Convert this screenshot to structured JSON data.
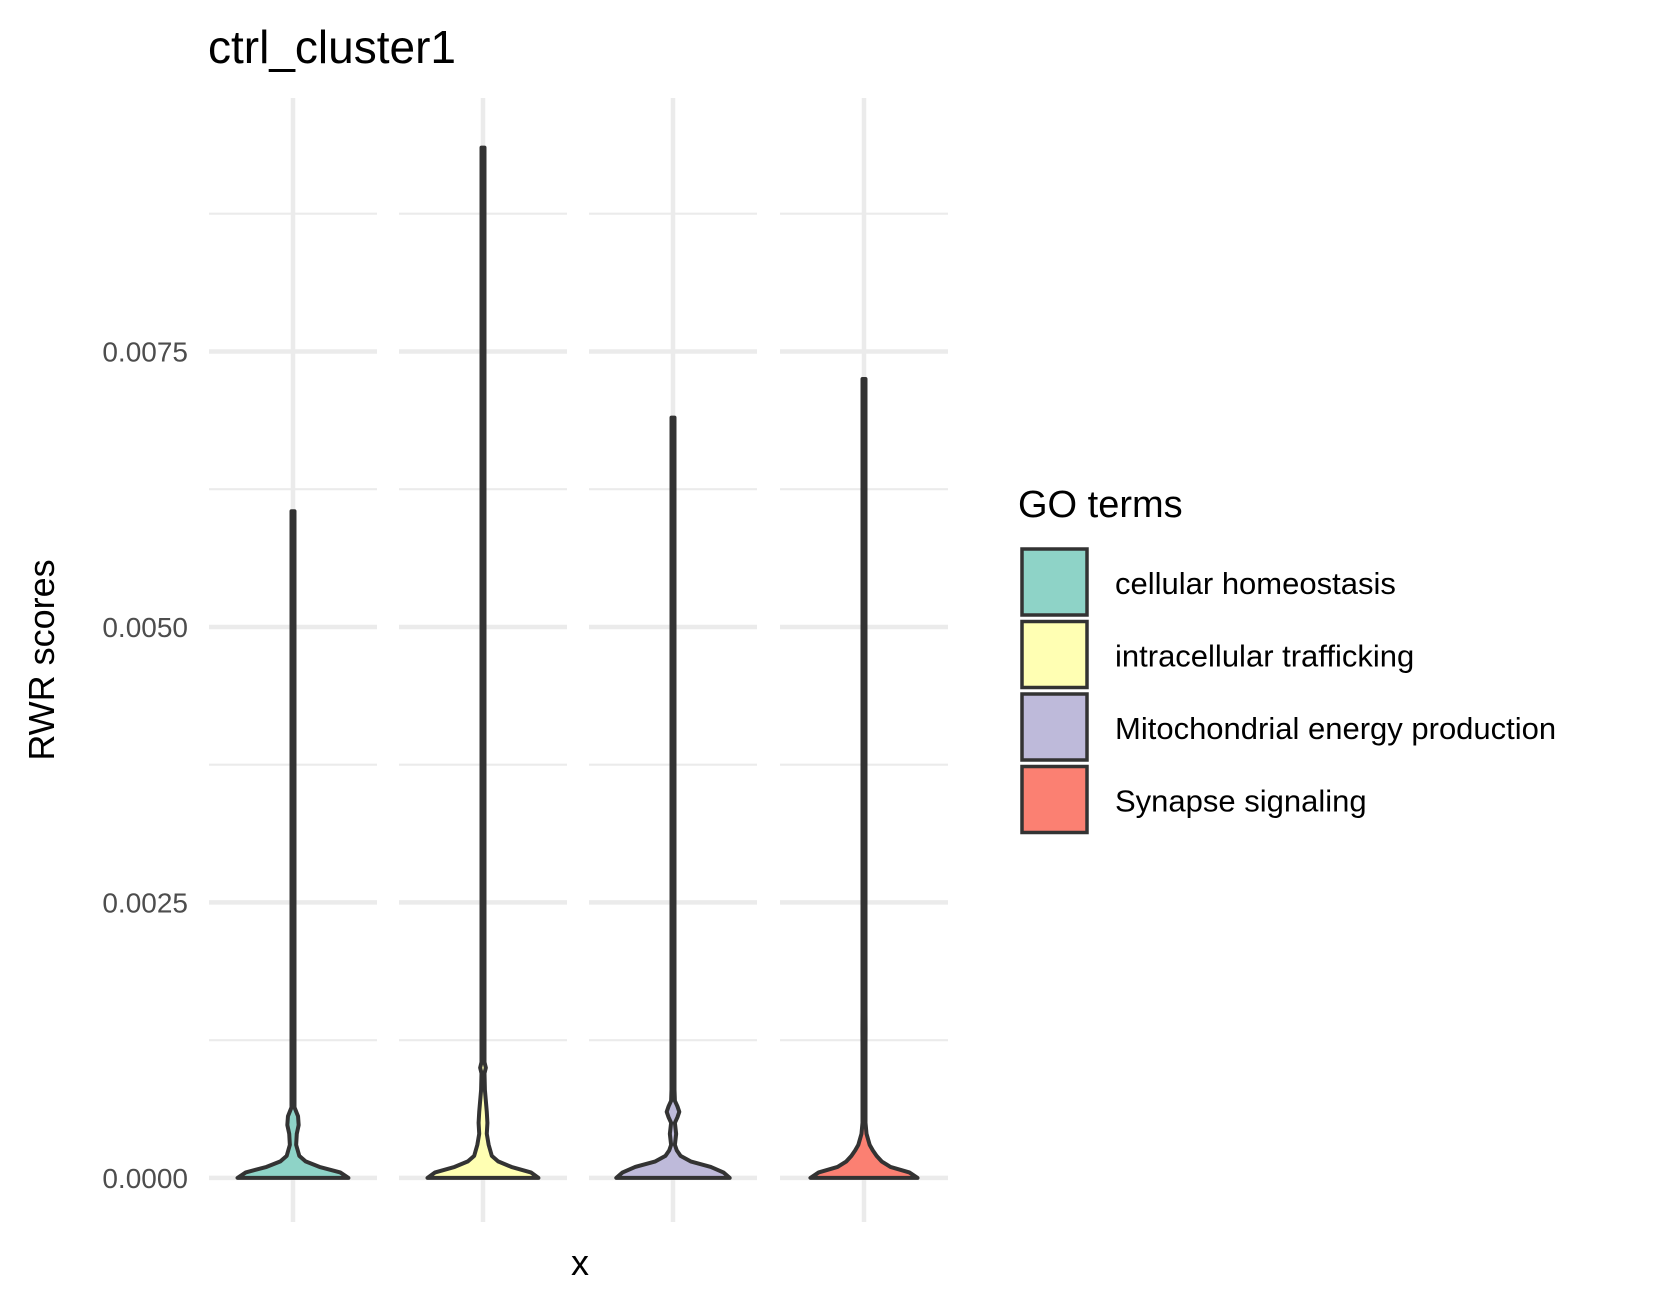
{
  "chart_data": {
    "type": "violin",
    "title": "ctrl_cluster1",
    "xlabel": "x",
    "ylabel": "RWR scores",
    "ylim": [
      -0.0004,
      0.0098
    ],
    "yticks": [
      0,
      0.0025,
      0.005,
      0.0075
    ],
    "yticks_minor": [
      0.00125,
      0.00375,
      0.00625,
      0.00875
    ],
    "ytick_labels": [
      "0.0000",
      "0.0025",
      "0.0050",
      "0.0075"
    ],
    "grid": true,
    "x_tick_labels_shown": false,
    "legend": {
      "title": "GO terms",
      "placement": "right"
    },
    "series": [
      {
        "name": "cellular homeostasis",
        "color": "#8ED3C7",
        "max": 0.00605,
        "density": [
          [
            0,
            0.88
          ],
          [
            5e-05,
            0.75
          ],
          [
            0.0001,
            0.42
          ],
          [
            0.00015,
            0.2
          ],
          [
            0.0002,
            0.1
          ],
          [
            0.0003,
            0.05
          ],
          [
            0.0004,
            0.06
          ],
          [
            0.00048,
            0.09
          ],
          [
            0.00056,
            0.08
          ],
          [
            0.00064,
            0.02
          ],
          [
            0.0008,
            0.012
          ],
          [
            0.001,
            0.008
          ],
          [
            0.0011,
            0.014
          ],
          [
            0.0012,
            0.006
          ],
          [
            0.0014,
            0.008
          ],
          [
            0.0015,
            0.014
          ],
          [
            0.0016,
            0.006
          ],
          [
            0.002,
            0.008
          ],
          [
            0.0021,
            0.014
          ],
          [
            0.0022,
            0.006
          ],
          [
            0.0024,
            0.012
          ],
          [
            0.0026,
            0.004
          ],
          [
            0.003,
            0.004
          ],
          [
            0.0045,
            0.004
          ],
          [
            0.006,
            0.004
          ],
          [
            0.00605,
            0.0
          ]
        ]
      },
      {
        "name": "intracellular trafficking",
        "color": "#FFFFB3",
        "max": 0.00935,
        "density": [
          [
            0,
            0.88
          ],
          [
            5e-05,
            0.76
          ],
          [
            0.0001,
            0.45
          ],
          [
            0.00015,
            0.24
          ],
          [
            0.0002,
            0.14
          ],
          [
            0.0003,
            0.09
          ],
          [
            0.0004,
            0.06
          ],
          [
            0.0005,
            0.07
          ],
          [
            0.0006,
            0.06
          ],
          [
            0.0008,
            0.03
          ],
          [
            0.00095,
            0.012
          ],
          [
            0.001,
            0.045
          ],
          [
            0.00105,
            0.012
          ],
          [
            0.0012,
            0.01
          ],
          [
            0.0014,
            0.012
          ],
          [
            0.00155,
            0.018
          ],
          [
            0.0017,
            0.008
          ],
          [
            0.0019,
            0.015
          ],
          [
            0.002,
            0.008
          ],
          [
            0.00215,
            0.004
          ],
          [
            0.003,
            0.004
          ],
          [
            0.005,
            0.004
          ],
          [
            0.009,
            0.004
          ],
          [
            0.00935,
            0.0
          ]
        ]
      },
      {
        "name": "Mitochondrial energy production",
        "color": "#BEBADA",
        "max": 0.0069,
        "density": [
          [
            0,
            0.9
          ],
          [
            5e-05,
            0.8
          ],
          [
            0.0001,
            0.6
          ],
          [
            0.00015,
            0.28
          ],
          [
            0.0002,
            0.12
          ],
          [
            0.00025,
            0.06
          ],
          [
            0.0003,
            0.03
          ],
          [
            0.0004,
            0.05
          ],
          [
            0.0005,
            0.03
          ],
          [
            0.00055,
            0.07
          ],
          [
            0.0006,
            0.1
          ],
          [
            0.00065,
            0.07
          ],
          [
            0.0007,
            0.03
          ],
          [
            0.0008,
            0.015
          ],
          [
            0.0009,
            0.004
          ],
          [
            0.0011,
            0.015
          ],
          [
            0.0012,
            0.004
          ],
          [
            0.0014,
            0.005
          ],
          [
            0.0015,
            0.015
          ],
          [
            0.0016,
            0.004
          ],
          [
            0.003,
            0.004
          ],
          [
            0.0049,
            0.004
          ],
          [
            0.0051,
            0.016
          ],
          [
            0.0053,
            0.004
          ],
          [
            0.0068,
            0.004
          ],
          [
            0.0069,
            0.0
          ]
        ]
      },
      {
        "name": "Synapse signaling",
        "color": "#FB8072",
        "max": 0.00725,
        "density": [
          [
            0,
            0.85
          ],
          [
            5e-05,
            0.72
          ],
          [
            0.0001,
            0.42
          ],
          [
            0.00015,
            0.28
          ],
          [
            0.0002,
            0.2
          ],
          [
            0.00025,
            0.14
          ],
          [
            0.0003,
            0.09
          ],
          [
            0.0004,
            0.04
          ],
          [
            0.0005,
            0.02
          ],
          [
            0.0007,
            0.01
          ],
          [
            0.0008,
            0.015
          ],
          [
            0.0009,
            0.004
          ],
          [
            0.0012,
            0.005
          ],
          [
            0.00135,
            0.025
          ],
          [
            0.0015,
            0.005
          ],
          [
            0.0017,
            0.015
          ],
          [
            0.0018,
            0.004
          ],
          [
            0.0019,
            0.015
          ],
          [
            0.002,
            0.004
          ],
          [
            0.0042,
            0.004
          ],
          [
            0.0043,
            0.014
          ],
          [
            0.0044,
            0.004
          ],
          [
            0.0046,
            0.004
          ],
          [
            0.0047,
            0.014
          ],
          [
            0.0048,
            0.004
          ],
          [
            0.0072,
            0.004
          ],
          [
            0.00725,
            0.0
          ]
        ]
      }
    ]
  }
}
